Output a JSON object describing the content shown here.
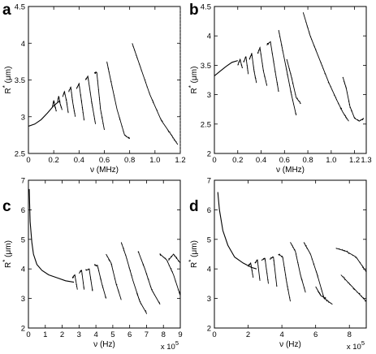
{
  "chart_data": [
    {
      "panel": "a",
      "type": "scatter",
      "xlabel_var": "ν",
      "xlabel_unit": "(MHz)",
      "ylabel_var": "R",
      "ylabel_sup": "*",
      "ylabel_unit": "(μm)",
      "xlim": [
        0,
        1.2
      ],
      "ylim": [
        2.5,
        4.5
      ],
      "xticks": [
        0,
        0.2,
        0.4,
        0.6,
        0.8,
        1.0,
        1.2
      ],
      "xtick_labels": [
        "0",
        "0.2",
        "0.4",
        "0.6",
        "0.8",
        "1.0",
        "1.2"
      ],
      "yticks": [
        2.5,
        3,
        3.5,
        4,
        4.5
      ],
      "ytick_labels": [
        "2.5",
        "3",
        "3.5",
        "4",
        "4.5"
      ],
      "sci_label": "",
      "continuous": {
        "x": [
          0,
          0.05,
          0.1,
          0.15,
          0.2,
          0.25
        ],
        "y": [
          2.87,
          2.9,
          2.96,
          3.05,
          3.15,
          3.22
        ]
      },
      "tongues": [
        {
          "x": [
            0.19,
            0.2,
            0.21,
            0.22
          ],
          "y": [
            3.14,
            3.22,
            3.14,
            3.08
          ]
        },
        {
          "x": [
            0.23,
            0.24,
            0.25,
            0.265
          ],
          "y": [
            3.2,
            3.28,
            3.18,
            3.1
          ]
        },
        {
          "x": [
            0.27,
            0.285,
            0.3,
            0.315
          ],
          "y": [
            3.27,
            3.34,
            3.22,
            3.05
          ]
        },
        {
          "x": [
            0.32,
            0.335,
            0.35,
            0.37
          ],
          "y": [
            3.35,
            3.4,
            3.2,
            3.0
          ]
        },
        {
          "x": [
            0.38,
            0.4,
            0.42,
            0.44
          ],
          "y": [
            3.38,
            3.45,
            3.2,
            2.95
          ]
        },
        {
          "x": [
            0.45,
            0.47,
            0.5,
            0.53
          ],
          "y": [
            3.5,
            3.55,
            3.2,
            2.9
          ]
        },
        {
          "x": [
            0.52,
            0.54,
            0.57,
            0.6
          ],
          "y": [
            3.6,
            3.6,
            3.1,
            2.82
          ]
        },
        {
          "x": [
            0.62,
            0.65,
            0.7,
            0.76,
            0.8
          ],
          "y": [
            3.75,
            3.5,
            3.1,
            2.75,
            2.7
          ]
        },
        {
          "x": [
            0.82,
            0.88,
            0.96,
            1.05,
            1.13,
            1.18
          ],
          "y": [
            4.0,
            3.7,
            3.3,
            2.95,
            2.75,
            2.62
          ]
        }
      ],
      "dotted_vline_x": 1.2
    },
    {
      "panel": "b",
      "type": "scatter",
      "xlabel_var": "ν",
      "xlabel_unit": "(MHz)",
      "ylabel_var": "R",
      "ylabel_sup": "*",
      "ylabel_unit": "(μm)",
      "xlim": [
        0,
        1.3
      ],
      "ylim": [
        2,
        4.5
      ],
      "xticks": [
        0,
        0.2,
        0.4,
        0.6,
        0.8,
        1.0,
        1.2,
        1.3
      ],
      "xtick_labels": [
        "0",
        "0.2",
        "0.4",
        "0.6",
        "0.8",
        "1.0",
        "1.2",
        "1.3"
      ],
      "yticks": [
        2,
        2.5,
        3,
        3.5,
        4,
        4.5
      ],
      "ytick_labels": [
        "2",
        "2.5",
        "3",
        "3.5",
        "4",
        "4.5"
      ],
      "sci_label": "",
      "continuous": {
        "x": [
          0,
          0.05,
          0.1,
          0.15,
          0.2
        ],
        "y": [
          3.32,
          3.4,
          3.48,
          3.55,
          3.58
        ]
      },
      "tongues": [
        {
          "x": [
            0.2,
            0.22,
            0.24
          ],
          "y": [
            3.5,
            3.6,
            3.45
          ]
        },
        {
          "x": [
            0.25,
            0.27,
            0.29
          ],
          "y": [
            3.55,
            3.65,
            3.35
          ]
        },
        {
          "x": [
            0.3,
            0.32,
            0.34,
            0.36
          ],
          "y": [
            3.6,
            3.7,
            3.4,
            3.2
          ]
        },
        {
          "x": [
            0.37,
            0.39,
            0.42,
            0.45
          ],
          "y": [
            3.7,
            3.8,
            3.4,
            3.15
          ]
        },
        {
          "x": [
            0.45,
            0.48,
            0.52,
            0.55
          ],
          "y": [
            3.85,
            3.9,
            3.4,
            3.05
          ]
        },
        {
          "x": [
            0.55,
            0.58,
            0.62,
            0.66,
            0.7
          ],
          "y": [
            4.1,
            3.8,
            3.4,
            3.0,
            2.65
          ]
        },
        {
          "x": [
            0.62,
            0.66,
            0.7,
            0.74
          ],
          "y": [
            3.6,
            3.3,
            2.95,
            2.85
          ]
        },
        {
          "x": [
            0.76,
            0.82,
            0.9,
            0.98,
            1.05,
            1.1,
            1.15
          ],
          "y": [
            4.4,
            4.0,
            3.6,
            3.2,
            2.9,
            2.7,
            2.55
          ]
        },
        {
          "x": [
            1.1,
            1.13,
            1.16,
            1.2,
            1.24,
            1.28
          ],
          "y": [
            3.3,
            3.1,
            2.8,
            2.6,
            2.55,
            2.6
          ]
        }
      ]
    },
    {
      "panel": "c",
      "type": "scatter",
      "xlabel_var": "ν",
      "xlabel_unit": "(Hz)",
      "ylabel_var": "R",
      "ylabel_sup": "*",
      "ylabel_unit": "(μm)",
      "xlim": [
        0,
        9
      ],
      "ylim": [
        2,
        7
      ],
      "xticks": [
        0,
        1,
        2,
        3,
        4,
        5,
        6,
        7,
        8,
        9
      ],
      "xtick_labels": [
        "0",
        "1",
        "2",
        "3",
        "4",
        "5",
        "6",
        "7",
        "8",
        "9"
      ],
      "yticks": [
        2,
        3,
        4,
        5,
        6,
        7
      ],
      "ytick_labels": [
        "2",
        "3",
        "4",
        "5",
        "6",
        "7"
      ],
      "sci_label": "x 10",
      "sci_exp": "5",
      "continuous": {
        "x": [
          0.05,
          0.1,
          0.2,
          0.3,
          0.5,
          0.8,
          1.2,
          1.7,
          2.2,
          2.7
        ],
        "y": [
          6.7,
          5.6,
          4.9,
          4.5,
          4.15,
          3.95,
          3.8,
          3.7,
          3.6,
          3.55
        ]
      },
      "tongues": [
        {
          "x": [
            2.6,
            2.75,
            2.9
          ],
          "y": [
            3.7,
            3.8,
            3.3
          ]
        },
        {
          "x": [
            3.0,
            3.15,
            3.3
          ],
          "y": [
            3.85,
            3.95,
            3.3
          ]
        },
        {
          "x": [
            3.4,
            3.6,
            3.8
          ],
          "y": [
            3.95,
            4.0,
            3.25
          ]
        },
        {
          "x": [
            3.9,
            4.1,
            4.35,
            4.6
          ],
          "y": [
            4.15,
            4.1,
            3.5,
            3.0
          ]
        },
        {
          "x": [
            4.6,
            4.9,
            5.2,
            5.5
          ],
          "y": [
            4.5,
            4.2,
            3.5,
            2.95
          ]
        },
        {
          "x": [
            5.5,
            5.8,
            6.2,
            6.6,
            7.0
          ],
          "y": [
            4.9,
            4.4,
            3.6,
            2.9,
            2.5
          ]
        },
        {
          "x": [
            6.5,
            6.9,
            7.3,
            7.8
          ],
          "y": [
            4.6,
            4.0,
            3.3,
            2.8
          ]
        },
        {
          "x": [
            7.8,
            8.2,
            8.6,
            9.0
          ],
          "y": [
            4.5,
            4.3,
            3.8,
            3.1
          ]
        },
        {
          "x": [
            8.3,
            8.6,
            9.0
          ],
          "y": [
            4.3,
            4.5,
            4.2
          ]
        }
      ]
    },
    {
      "panel": "d",
      "type": "scatter",
      "xlabel_var": "ν",
      "xlabel_unit": "(Hz)",
      "ylabel_var": "R",
      "ylabel_sup": "*",
      "ylabel_unit": "(μm)",
      "xlim": [
        0,
        9
      ],
      "ylim": [
        2,
        7
      ],
      "xticks": [
        0,
        2,
        4,
        6,
        8
      ],
      "xtick_labels": [
        "0",
        "2",
        "4",
        "6",
        "8"
      ],
      "yticks": [
        2,
        3,
        4,
        5,
        6,
        7
      ],
      "ytick_labels": [
        "2",
        "3",
        "4",
        "5",
        "6",
        "7"
      ],
      "sci_label": "x 10",
      "sci_exp": "5",
      "continuous": {
        "x": [
          0.2,
          0.3,
          0.5,
          0.8,
          1.2,
          1.7,
          2.2,
          2.5
        ],
        "y": [
          6.6,
          6.0,
          5.3,
          4.8,
          4.4,
          4.2,
          4.05,
          4.0
        ]
      },
      "tongues": [
        {
          "x": [
            2.0,
            2.15,
            2.3
          ],
          "y": [
            4.1,
            4.2,
            3.7
          ]
        },
        {
          "x": [
            2.4,
            2.55,
            2.7
          ],
          "y": [
            4.2,
            4.3,
            3.6
          ]
        },
        {
          "x": [
            2.8,
            3.0,
            3.2
          ],
          "y": [
            4.3,
            4.35,
            3.5
          ]
        },
        {
          "x": [
            3.3,
            3.5,
            3.7
          ],
          "y": [
            4.35,
            4.4,
            3.4
          ]
        },
        {
          "x": [
            3.8,
            4.05,
            4.3,
            4.5
          ],
          "y": [
            4.5,
            4.4,
            3.5,
            2.9
          ]
        },
        {
          "x": [
            4.5,
            4.8,
            5.1,
            5.4
          ],
          "y": [
            4.9,
            4.6,
            3.8,
            3.2
          ]
        },
        {
          "x": [
            5.3,
            5.7,
            6.1,
            6.5,
            7.0
          ],
          "y": [
            4.9,
            4.5,
            3.8,
            3.0,
            2.8
          ]
        },
        {
          "x": [
            6.0,
            6.3,
            6.6
          ],
          "y": [
            3.4,
            3.1,
            3.0
          ]
        },
        {
          "x": [
            7.2,
            7.8,
            8.4,
            9.0
          ],
          "y": [
            4.7,
            4.6,
            4.4,
            3.9
          ]
        },
        {
          "x": [
            7.5,
            8.0,
            8.5,
            9.0
          ],
          "y": [
            3.8,
            3.5,
            3.2,
            2.9
          ]
        }
      ]
    }
  ]
}
